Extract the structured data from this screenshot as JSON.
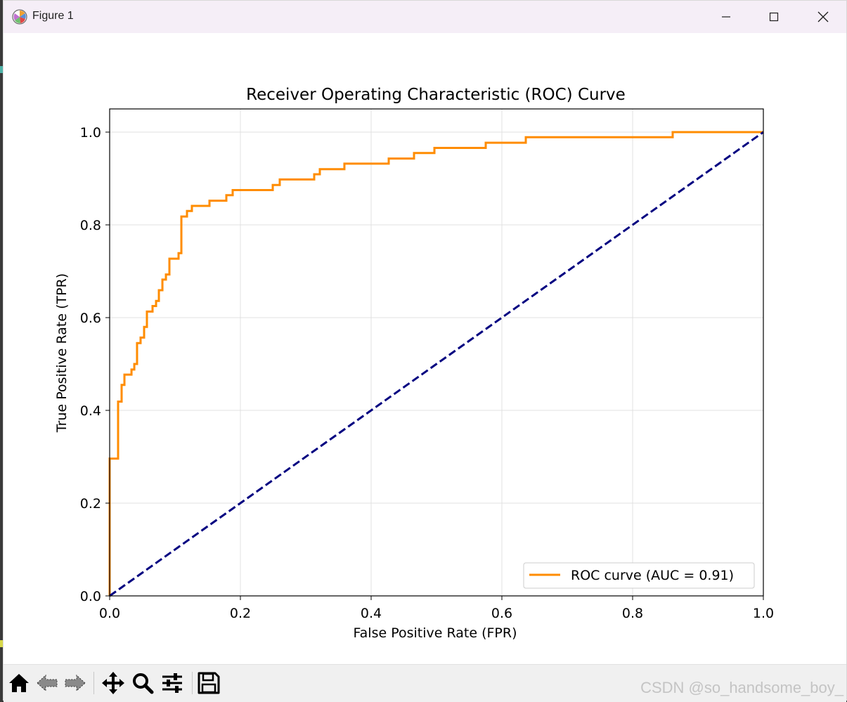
{
  "window": {
    "title": "Figure 1"
  },
  "colors": {
    "roc_line": "#ff8c00",
    "baseline": "#000080",
    "grid": "#e0e0e0",
    "axes": "#000000"
  },
  "toolbar": {
    "buttons": [
      {
        "name": "home-button",
        "icon": "home-icon"
      },
      {
        "name": "back-button",
        "icon": "arrow-left-icon"
      },
      {
        "name": "forward-button",
        "icon": "arrow-right-icon"
      },
      {
        "name": "pan-button",
        "icon": "move-icon"
      },
      {
        "name": "zoom-button",
        "icon": "magnifier-icon"
      },
      {
        "name": "configure-subplots-button",
        "icon": "sliders-icon"
      },
      {
        "name": "save-button",
        "icon": "floppy-disk-icon"
      }
    ],
    "watermark": "CSDN @so_handsome_boy_"
  },
  "chart_data": {
    "type": "line",
    "title": "Receiver Operating Characteristic (ROC) Curve",
    "xlabel": "False Positive Rate (FPR)",
    "ylabel": "True Positive Rate (TPR)",
    "xlim": [
      0.0,
      1.0
    ],
    "ylim": [
      0.0,
      1.05
    ],
    "xticks": [
      "0.0",
      "0.2",
      "0.4",
      "0.6",
      "0.8",
      "1.0"
    ],
    "yticks": [
      "0.0",
      "0.2",
      "0.4",
      "0.6",
      "0.8",
      "1.0"
    ],
    "grid": true,
    "legend": {
      "location": "lower right",
      "entries": [
        "ROC curve (AUC = 0.91)"
      ]
    },
    "series": [
      {
        "name": "ROC curve (AUC = 0.91)",
        "style": "solid",
        "x": [
          0.0,
          0.0,
          0.0129,
          0.0129,
          0.0183,
          0.0183,
          0.0226,
          0.0226,
          0.0334,
          0.0334,
          0.0377,
          0.0377,
          0.0419,
          0.0419,
          0.0473,
          0.0473,
          0.0527,
          0.0527,
          0.057,
          0.057,
          0.0656,
          0.0656,
          0.071,
          0.071,
          0.0753,
          0.0753,
          0.0807,
          0.0807,
          0.0861,
          0.0861,
          0.0914,
          0.0914,
          0.1054,
          0.1054,
          0.1097,
          0.1097,
          0.1183,
          0.1183,
          0.1258,
          0.1258,
          0.1527,
          0.1527,
          0.1785,
          0.1785,
          0.1882,
          0.1882,
          0.2495,
          0.2495,
          0.2602,
          0.2602,
          0.3129,
          0.3129,
          0.3215,
          0.3215,
          0.3591,
          0.3591,
          0.4269,
          0.4269,
          0.4656,
          0.4656,
          0.4968,
          0.4968,
          0.5753,
          0.5753,
          0.6366,
          0.6366,
          0.8613,
          0.8613,
          1.0
        ],
        "y": [
          0.0,
          0.296,
          0.296,
          0.419,
          0.419,
          0.455,
          0.455,
          0.477,
          0.477,
          0.488,
          0.488,
          0.5,
          0.5,
          0.545,
          0.545,
          0.557,
          0.557,
          0.58,
          0.58,
          0.613,
          0.613,
          0.625,
          0.625,
          0.636,
          0.636,
          0.659,
          0.659,
          0.682,
          0.682,
          0.693,
          0.693,
          0.727,
          0.727,
          0.739,
          0.739,
          0.818,
          0.818,
          0.83,
          0.83,
          0.841,
          0.841,
          0.852,
          0.852,
          0.864,
          0.864,
          0.875,
          0.875,
          0.886,
          0.886,
          0.898,
          0.898,
          0.909,
          0.909,
          0.92,
          0.92,
          0.932,
          0.932,
          0.943,
          0.943,
          0.955,
          0.955,
          0.966,
          0.966,
          0.977,
          0.977,
          0.989,
          0.989,
          1.0,
          1.0
        ]
      },
      {
        "name": "baseline",
        "style": "dashed",
        "x": [
          0.0,
          1.0
        ],
        "y": [
          0.0,
          1.0
        ]
      }
    ]
  }
}
